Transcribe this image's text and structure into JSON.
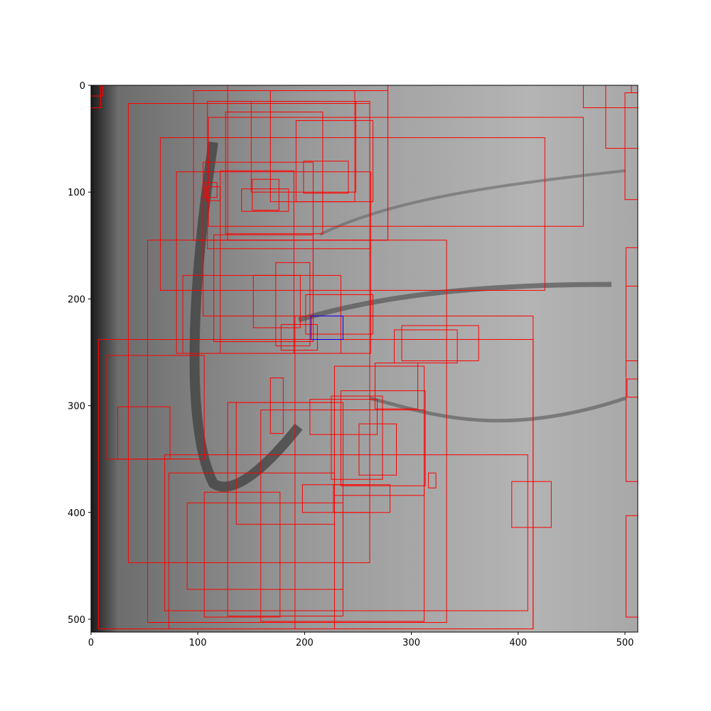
{
  "chart_data": {
    "type": "boxes",
    "xlim": [
      0,
      512
    ],
    "ylim": [
      512,
      0
    ],
    "xticks": [
      0,
      100,
      200,
      300,
      400,
      500
    ],
    "yticks": [
      0,
      100,
      200,
      300,
      400,
      500
    ],
    "box_color": "#ff0000",
    "highlight_color": "#0000ff",
    "highlight_box": [
      206,
      216,
      236,
      238
    ],
    "boxes": [
      [
        0,
        0,
        11,
        10
      ],
      [
        0,
        0,
        9,
        21
      ],
      [
        35,
        17,
        261,
        447
      ],
      [
        96,
        5,
        278,
        145
      ],
      [
        128,
        0,
        278,
        145
      ],
      [
        65,
        49,
        425,
        192
      ],
      [
        110,
        30,
        461,
        132
      ],
      [
        53,
        145,
        333,
        503
      ],
      [
        7,
        238,
        414,
        509
      ],
      [
        15,
        253,
        106,
        350
      ],
      [
        25,
        301,
        74,
        350
      ],
      [
        69,
        346,
        409,
        492
      ],
      [
        73,
        363,
        228,
        509
      ],
      [
        90,
        391,
        236,
        472
      ],
      [
        106,
        381,
        177,
        498
      ],
      [
        128,
        297,
        236,
        497
      ],
      [
        159,
        304,
        312,
        502
      ],
      [
        191,
        216,
        414,
        509
      ],
      [
        201,
        196,
        264,
        233
      ],
      [
        152,
        178,
        196,
        227
      ],
      [
        178,
        224,
        212,
        248
      ],
      [
        284,
        229,
        343,
        260
      ],
      [
        291,
        225,
        363,
        258
      ],
      [
        266,
        260,
        306,
        303
      ],
      [
        205,
        294,
        268,
        327
      ],
      [
        251,
        317,
        286,
        365
      ],
      [
        225,
        291,
        273,
        369
      ],
      [
        234,
        286,
        313,
        375
      ],
      [
        227,
        374,
        280,
        400
      ],
      [
        198,
        374,
        261,
        400
      ],
      [
        316,
        363,
        323,
        377
      ],
      [
        394,
        371,
        431,
        414
      ],
      [
        461,
        0,
        512,
        21
      ],
      [
        482,
        0,
        512,
        59
      ],
      [
        500,
        7,
        512,
        107
      ],
      [
        501,
        152,
        512,
        371
      ],
      [
        501,
        188,
        512,
        258
      ],
      [
        502,
        275,
        512,
        292
      ],
      [
        501,
        403,
        512,
        498
      ],
      [
        506,
        0,
        512,
        7
      ],
      [
        168,
        274,
        180,
        326
      ],
      [
        80,
        81,
        262,
        251
      ],
      [
        86,
        178,
        234,
        251
      ],
      [
        105,
        72,
        208,
        216
      ],
      [
        115,
        140,
        208,
        240
      ],
      [
        121,
        80,
        190,
        251
      ],
      [
        173,
        166,
        205,
        244
      ],
      [
        150,
        15,
        248,
        100
      ],
      [
        168,
        5,
        247,
        109
      ],
      [
        109,
        15,
        261,
        153
      ],
      [
        126,
        25,
        217,
        139
      ],
      [
        106,
        91,
        118,
        105
      ],
      [
        108,
        95,
        121,
        108
      ],
      [
        141,
        97,
        185,
        118
      ],
      [
        151,
        88,
        176,
        117
      ],
      [
        136,
        297,
        228,
        411
      ],
      [
        228,
        263,
        312,
        384
      ],
      [
        192,
        33,
        264,
        109
      ],
      [
        199,
        71,
        241,
        101
      ]
    ]
  }
}
